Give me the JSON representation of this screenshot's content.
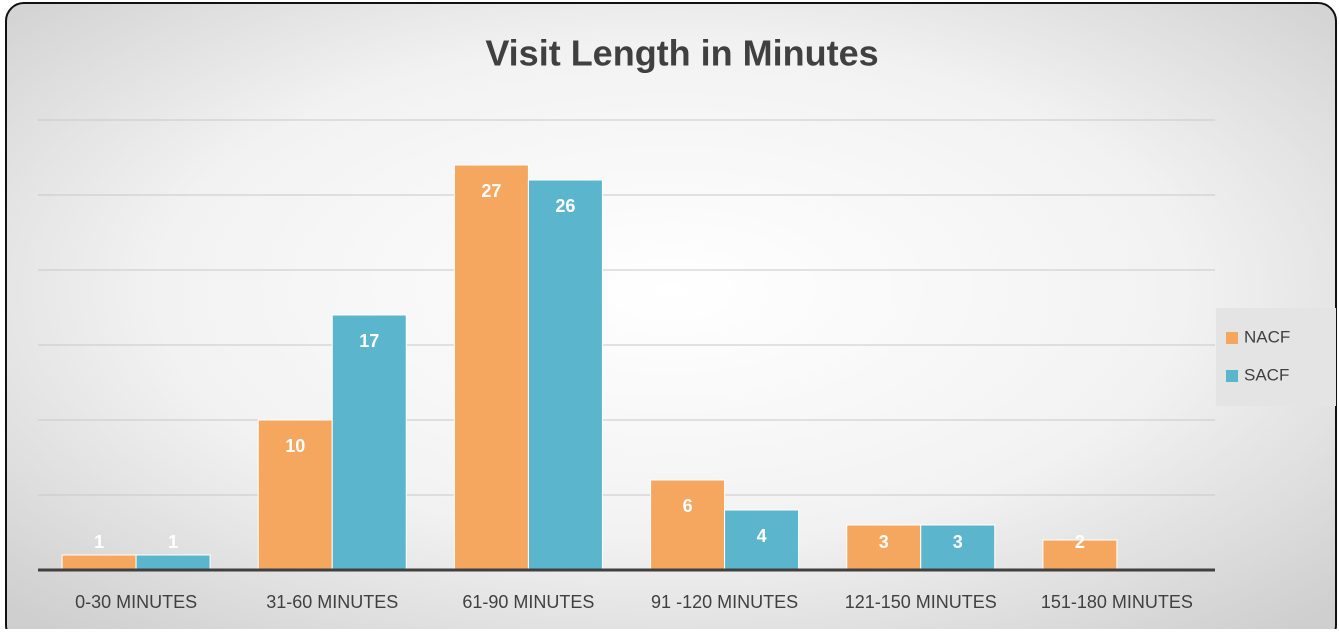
{
  "chart_data": {
    "type": "bar",
    "title": "Visit Length in Minutes",
    "categories": [
      "0-30 MINUTES",
      "31-60 MINUTES",
      "61-90 MINUTES",
      "91 -120 MINUTES",
      "121-150 MINUTES",
      "151-180 MINUTES"
    ],
    "series": [
      {
        "name": "NACF",
        "color": "#f5a65f",
        "values": [
          1,
          10,
          27,
          6,
          3,
          2
        ]
      },
      {
        "name": "SACF",
        "color": "#5bb6cd",
        "values": [
          1,
          17,
          26,
          4,
          3,
          null
        ]
      }
    ],
    "ylim": [
      0,
      30
    ],
    "yticks": [
      0,
      5,
      10,
      15,
      20,
      25,
      30
    ],
    "grid": true,
    "legend": "right"
  }
}
